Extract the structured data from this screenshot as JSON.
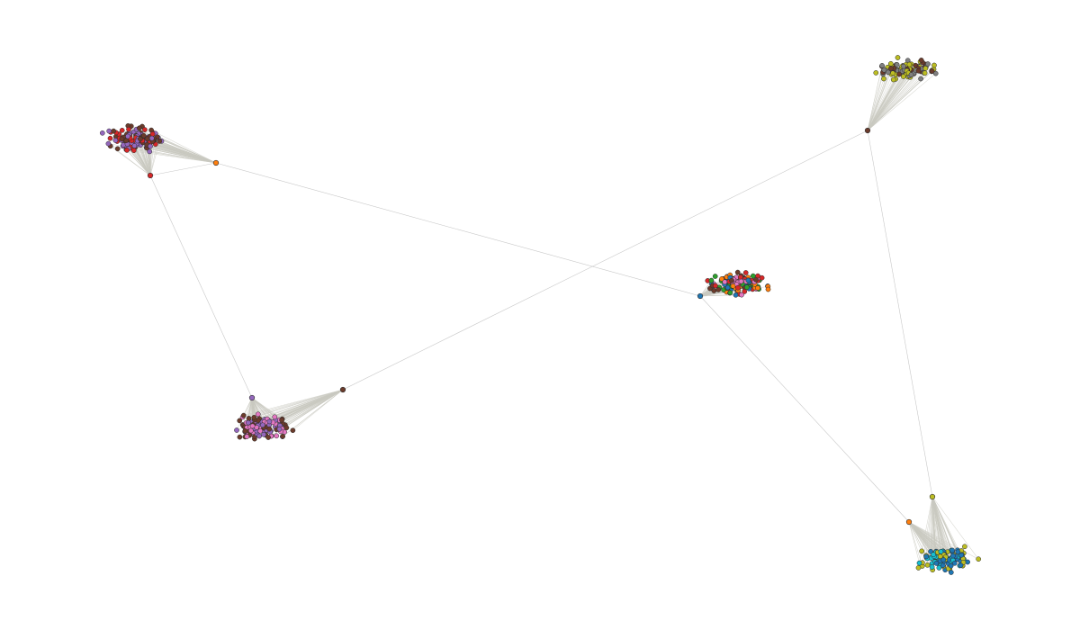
{
  "graph": {
    "type": "network",
    "palette": {
      "blue": "#1f77b4",
      "orange": "#ff7f0e",
      "green": "#2ca02c",
      "red": "#d62728",
      "purple": "#9467bd",
      "brown": "#6b3b2b",
      "pink": "#e377c2",
      "gray": "#7f7f7f",
      "olive": "#bcbd22",
      "cyan": "#17becf"
    },
    "clusters": [
      {
        "id": "cluster-top-left",
        "colors": [
          "purple",
          "brown",
          "red"
        ],
        "members": 120
      },
      {
        "id": "cluster-top-right",
        "colors": [
          "olive",
          "brown",
          "gray"
        ],
        "members": 100
      },
      {
        "id": "cluster-center",
        "colors": [
          "red",
          "green",
          "orange",
          "brown",
          "blue",
          "pink"
        ],
        "members": 140
      },
      {
        "id": "cluster-bottom-left",
        "colors": [
          "pink",
          "brown",
          "purple"
        ],
        "members": 120
      },
      {
        "id": "cluster-bottom-right",
        "colors": [
          "cyan",
          "olive",
          "blue"
        ],
        "members": 110
      }
    ],
    "hubs": [
      {
        "id": "hub-tl-red",
        "color": "red",
        "cluster": "cluster-top-left"
      },
      {
        "id": "hub-tl-orange",
        "color": "orange",
        "cluster": "cluster-top-left"
      },
      {
        "id": "hub-tr-brown",
        "color": "brown",
        "cluster": "cluster-top-right"
      },
      {
        "id": "hub-c-blue",
        "color": "blue",
        "cluster": "cluster-center"
      },
      {
        "id": "hub-bl-purple",
        "color": "purple",
        "cluster": "cluster-bottom-left"
      },
      {
        "id": "hub-bl-brown",
        "color": "brown",
        "cluster": "cluster-bottom-left"
      },
      {
        "id": "hub-br-orange",
        "color": "orange",
        "cluster": "cluster-bottom-right"
      },
      {
        "id": "hub-br-olive",
        "color": "olive",
        "cluster": "cluster-bottom-right"
      }
    ],
    "links": [
      [
        "hub-tl-orange",
        "hub-c-blue"
      ],
      [
        "hub-tl-red",
        "hub-bl-purple"
      ],
      [
        "hub-bl-brown",
        "hub-tr-brown"
      ],
      [
        "hub-tr-brown",
        "hub-br-olive"
      ],
      [
        "hub-c-blue",
        "hub-br-orange"
      ],
      [
        "hub-tl-red",
        "hub-tl-orange"
      ]
    ]
  }
}
